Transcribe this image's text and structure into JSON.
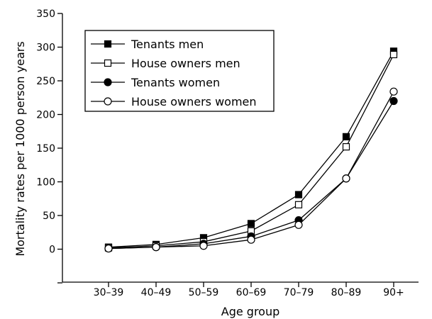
{
  "chart_data": {
    "type": "line",
    "title": "",
    "xlabel": "Age group",
    "ylabel": "Mortality rates per 1000 person years",
    "categories": [
      "30–39",
      "40–49",
      "50–59",
      "60–69",
      "70–79",
      "80–89",
      "90+"
    ],
    "ylim": [
      -50,
      350
    ],
    "yticks": [
      "0",
      "50",
      "100",
      "150",
      "200",
      "250",
      "300",
      "350"
    ],
    "grid": false,
    "legend_position": "top-left",
    "series": [
      {
        "name": "Tenants men",
        "marker": "filled-square",
        "values": [
          3,
          7,
          17,
          38,
          81,
          167,
          294
        ]
      },
      {
        "name": "House owners men",
        "marker": "open-square",
        "values": [
          2,
          5,
          11,
          27,
          66,
          152,
          289
        ]
      },
      {
        "name": "Tenants women",
        "marker": "filled-circle",
        "values": [
          1,
          3,
          8,
          19,
          43,
          105,
          220
        ]
      },
      {
        "name": "House owners women",
        "marker": "open-circle",
        "values": [
          1,
          3,
          5,
          14,
          36,
          105,
          234
        ]
      }
    ]
  }
}
